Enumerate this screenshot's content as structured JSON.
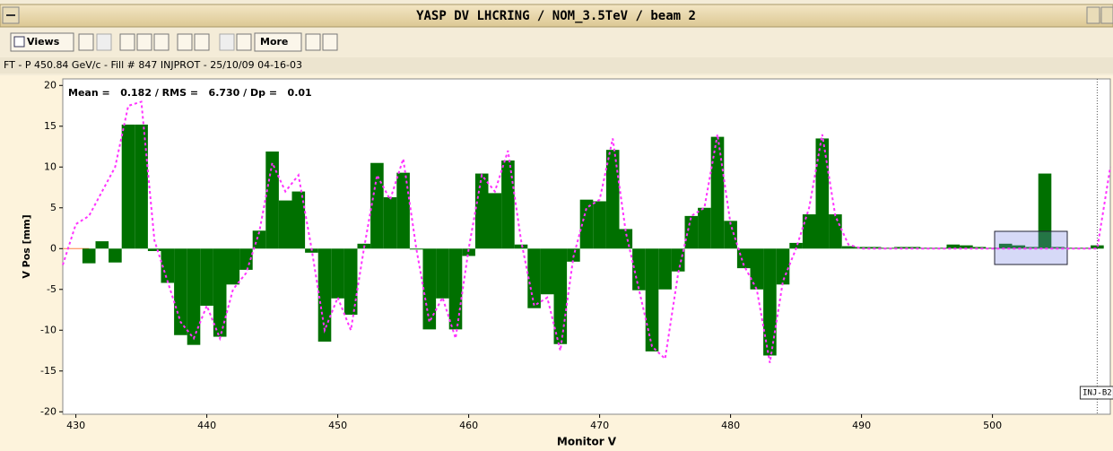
{
  "window": {
    "title": "YASP DV LHCRING / NOM_3.5TeV / beam 2"
  },
  "toolbar": {
    "views": "Views",
    "more": "More"
  },
  "status": "FT - P 450.84 GeV/c - Fill # 847 INJPROT - 25/10/09 04-16-03",
  "chart_data": {
    "type": "bar",
    "stats": "Mean =   0.182 / RMS =   6.730 / Dp =   0.01",
    "xlabel": "Monitor V",
    "ylabel": "V Pos [mm]",
    "xlim": [
      429,
      509
    ],
    "xticks": [
      430,
      440,
      450,
      460,
      470,
      480,
      490,
      500
    ],
    "ylim": [
      -20.3,
      20.8
    ],
    "yticks": [
      -20,
      -15,
      -10,
      -5,
      0,
      5,
      10,
      15,
      20
    ],
    "bars": {
      "color": "#007000",
      "x": [
        431,
        432,
        433,
        434,
        435,
        436,
        437,
        438,
        439,
        440,
        441,
        442,
        443,
        444,
        445,
        446,
        447,
        448,
        449,
        450,
        451,
        452,
        453,
        454,
        455,
        456,
        457,
        458,
        459,
        460,
        461,
        462,
        463,
        464,
        465,
        466,
        467,
        468,
        469,
        470,
        471,
        472,
        473,
        474,
        475,
        476,
        477,
        478,
        479,
        480,
        481,
        482,
        483,
        484,
        485,
        486,
        487,
        488,
        489,
        490,
        491,
        492,
        493,
        494,
        495,
        496,
        497,
        498,
        499,
        500,
        501,
        502,
        503,
        504,
        505,
        506,
        507,
        508
      ],
      "values": [
        -1.8,
        0.9,
        -1.7,
        15.2,
        15.2,
        -0.3,
        -4.2,
        -10.6,
        -11.8,
        -7.0,
        -10.8,
        -4.4,
        -2.6,
        2.2,
        11.9,
        5.9,
        7.0,
        -0.5,
        -11.4,
        -6.1,
        -8.1,
        0.6,
        10.5,
        6.3,
        9.3,
        0,
        -9.9,
        -6.1,
        -9.9,
        -0.9,
        9.2,
        6.8,
        10.8,
        0.5,
        -7.3,
        -5.6,
        -11.7,
        -1.6,
        6.0,
        5.8,
        12.1,
        2.4,
        -5.1,
        -12.6,
        -5.0,
        -2.8,
        4.0,
        5.0,
        13.7,
        3.4,
        -2.4,
        -5.0,
        -13.1,
        -4.4,
        0.7,
        4.2,
        13.5,
        4.2,
        0.3,
        0.2,
        0.2,
        0.1,
        0.2,
        0.2,
        0.1,
        0.1,
        0.5,
        0.4,
        0.2,
        0.1,
        0.6,
        0.4,
        0.2,
        9.2,
        0.2,
        0.1,
        0.1,
        0.4
      ]
    },
    "line": {
      "color": "#ff33ff",
      "x": [
        429,
        430,
        431,
        432,
        433,
        434,
        435,
        436,
        437,
        438,
        439,
        440,
        441,
        442,
        443,
        444,
        445,
        446,
        447,
        448,
        449,
        450,
        451,
        452,
        453,
        454,
        455,
        456,
        457,
        458,
        459,
        460,
        461,
        462,
        463,
        464,
        465,
        466,
        467,
        468,
        469,
        470,
        471,
        472,
        473,
        474,
        475,
        476,
        477,
        478,
        479,
        480,
        481,
        482,
        483,
        484,
        485,
        486,
        487,
        488,
        489,
        490,
        491,
        492,
        493,
        494,
        495,
        496,
        497,
        498,
        499,
        500,
        501,
        502,
        503,
        504,
        505,
        506,
        507,
        508,
        509
      ],
      "values": [
        -2,
        3,
        4,
        7,
        10,
        17.5,
        18,
        1,
        -4,
        -9,
        -11,
        -7,
        -11,
        -5,
        -3,
        2,
        10.5,
        7,
        9,
        0,
        -10,
        -6,
        -10,
        0,
        9,
        6,
        11,
        0,
        -9,
        -6,
        -11,
        0,
        9,
        7,
        12,
        1,
        -7,
        -6,
        -12.5,
        -1,
        5,
        6,
        13.5,
        2,
        -5,
        -12,
        -13.5,
        -3,
        4,
        5,
        14,
        3,
        -2,
        -5,
        -14,
        -4,
        0,
        5,
        14,
        4,
        0.5,
        0,
        0,
        0,
        0,
        0,
        0,
        0,
        0,
        0,
        0,
        0,
        0,
        0,
        0,
        0,
        0,
        0,
        0,
        0,
        10
      ]
    },
    "marker": {
      "label": "INJ-B2",
      "x": 508
    }
  }
}
